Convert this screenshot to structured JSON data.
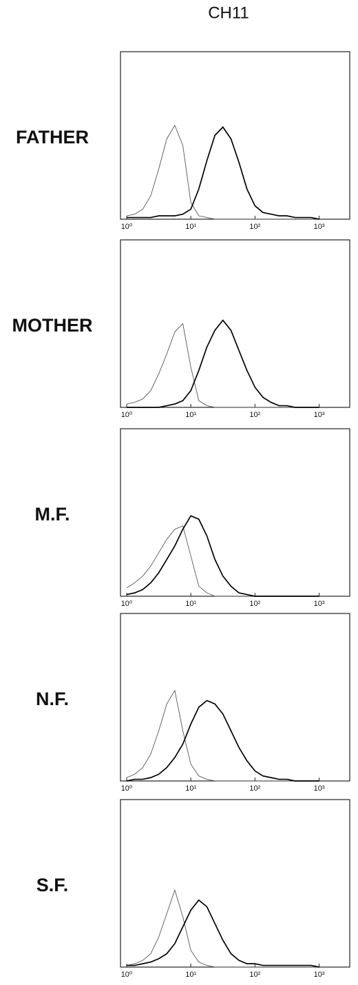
{
  "header": "CH11",
  "chart_data": [
    {
      "type": "line",
      "title": "FATHER",
      "xscale": "log",
      "xlim": [
        0.8,
        3000
      ],
      "ylim": [
        0,
        100
      ],
      "xticks": [
        {
          "value": 1,
          "label": "10⁰"
        },
        {
          "value": 10,
          "label": "10¹"
        },
        {
          "value": 100,
          "label": "10²"
        },
        {
          "value": 1000,
          "label": "10³"
        }
      ],
      "x": [
        1,
        1.33,
        1.78,
        2.37,
        3.16,
        4.22,
        5.62,
        7.5,
        10,
        13.3,
        17.8,
        23.7,
        31.6,
        42.2,
        56.2,
        75,
        100,
        133,
        178,
        237,
        316,
        422,
        562,
        750,
        1000
      ],
      "series": [
        {
          "color": "#555555",
          "values": [
            2,
            3,
            6,
            14,
            30,
            48,
            56,
            44,
            10,
            2,
            1,
            0,
            0,
            0,
            0,
            0,
            0,
            0,
            0,
            0,
            0,
            0,
            0,
            0,
            0
          ]
        },
        {
          "color": "#000000",
          "values": [
            1,
            1,
            1,
            1,
            2,
            2,
            2,
            3,
            6,
            18,
            35,
            50,
            55,
            48,
            34,
            18,
            8,
            4,
            3,
            2,
            2,
            1,
            1,
            1,
            0
          ]
        }
      ]
    },
    {
      "type": "line",
      "title": "MOTHER",
      "xscale": "log",
      "xlim": [
        0.8,
        3000
      ],
      "ylim": [
        0,
        100
      ],
      "xticks": [
        {
          "value": 1,
          "label": "10⁰"
        },
        {
          "value": 10,
          "label": "10¹"
        },
        {
          "value": 100,
          "label": "10²"
        },
        {
          "value": 1000,
          "label": "10³"
        }
      ],
      "x": [
        1,
        1.33,
        1.78,
        2.37,
        3.16,
        4.22,
        5.62,
        7.5,
        10,
        13.3,
        17.8,
        23.7,
        31.6,
        42.2,
        56.2,
        75,
        100,
        133,
        178,
        237,
        316,
        422,
        562,
        750,
        1000
      ],
      "series": [
        {
          "color": "#555555",
          "values": [
            2,
            3,
            5,
            10,
            20,
            32,
            45,
            50,
            24,
            4,
            1,
            0,
            0,
            0,
            0,
            0,
            0,
            0,
            0,
            0,
            0,
            0,
            0,
            0,
            0
          ]
        },
        {
          "color": "#000000",
          "values": [
            0,
            0,
            0,
            0,
            0,
            1,
            2,
            4,
            10,
            22,
            36,
            46,
            52,
            46,
            34,
            22,
            12,
            6,
            3,
            1,
            1,
            0,
            0,
            0,
            0
          ]
        }
      ]
    },
    {
      "type": "line",
      "title": "M.F.",
      "xscale": "log",
      "xlim": [
        0.8,
        3000
      ],
      "ylim": [
        0,
        100
      ],
      "xticks": [
        {
          "value": 1,
          "label": "10⁰"
        },
        {
          "value": 10,
          "label": "10¹"
        },
        {
          "value": 100,
          "label": "10²"
        },
        {
          "value": 1000,
          "label": "10³"
        }
      ],
      "x": [
        1,
        1.33,
        1.78,
        2.37,
        3.16,
        4.22,
        5.62,
        7.5,
        10,
        13.3,
        17.8,
        23.7,
        31.6,
        42.2,
        56.2,
        75,
        100,
        133,
        178,
        237,
        316,
        422,
        562,
        750,
        1000
      ],
      "series": [
        {
          "color": "#555555",
          "values": [
            5,
            8,
            12,
            18,
            26,
            34,
            40,
            42,
            24,
            6,
            2,
            0,
            0,
            0,
            0,
            0,
            0,
            0,
            0,
            0,
            0,
            0,
            0,
            0,
            0
          ]
        },
        {
          "color": "#000000",
          "values": [
            1,
            2,
            4,
            8,
            14,
            22,
            30,
            40,
            48,
            46,
            36,
            22,
            12,
            6,
            2,
            1,
            0,
            0,
            0,
            0,
            0,
            0,
            0,
            0,
            0
          ]
        }
      ]
    },
    {
      "type": "line",
      "title": "N.F.",
      "xscale": "log",
      "xlim": [
        0.8,
        3000
      ],
      "ylim": [
        0,
        100
      ],
      "xticks": [
        {
          "value": 1,
          "label": "10⁰"
        },
        {
          "value": 10,
          "label": "10¹"
        },
        {
          "value": 100,
          "label": "10²"
        },
        {
          "value": 1000,
          "label": "10³"
        }
      ],
      "x": [
        1,
        1.33,
        1.78,
        2.37,
        3.16,
        4.22,
        5.62,
        7.5,
        10,
        13.3,
        17.8,
        23.7,
        31.6,
        42.2,
        56.2,
        75,
        100,
        133,
        178,
        237,
        316,
        422,
        562,
        750,
        1000
      ],
      "series": [
        {
          "color": "#555555",
          "values": [
            2,
            4,
            8,
            16,
            30,
            46,
            54,
            30,
            10,
            3,
            1,
            0,
            0,
            0,
            0,
            0,
            0,
            0,
            0,
            0,
            0,
            0,
            0,
            0,
            0
          ]
        },
        {
          "color": "#000000",
          "values": [
            0,
            1,
            1,
            2,
            4,
            8,
            14,
            22,
            34,
            44,
            48,
            46,
            40,
            30,
            20,
            12,
            6,
            3,
            2,
            1,
            1,
            0,
            0,
            0,
            0
          ]
        }
      ]
    },
    {
      "type": "line",
      "title": "S.F.",
      "xscale": "log",
      "xlim": [
        0.8,
        3000
      ],
      "ylim": [
        0,
        100
      ],
      "xticks": [
        {
          "value": 1,
          "label": "10⁰"
        },
        {
          "value": 10,
          "label": "10¹"
        },
        {
          "value": 100,
          "label": "10²"
        },
        {
          "value": 1000,
          "label": "10³"
        }
      ],
      "x": [
        1,
        1.33,
        1.78,
        2.37,
        3.16,
        4.22,
        5.62,
        7.5,
        10,
        13.3,
        17.8,
        23.7,
        31.6,
        42.2,
        56.2,
        75,
        100,
        133,
        178,
        237,
        316,
        422,
        562,
        750,
        1000
      ],
      "series": [
        {
          "color": "#555555",
          "values": [
            1,
            2,
            4,
            8,
            18,
            32,
            46,
            30,
            10,
            3,
            1,
            0,
            0,
            0,
            0,
            0,
            0,
            0,
            0,
            0,
            0,
            0,
            0,
            0,
            0
          ]
        },
        {
          "color": "#000000",
          "values": [
            1,
            1,
            2,
            3,
            5,
            8,
            14,
            24,
            34,
            40,
            36,
            26,
            16,
            8,
            4,
            2,
            2,
            1,
            1,
            1,
            1,
            1,
            1,
            1,
            0
          ]
        }
      ]
    }
  ]
}
